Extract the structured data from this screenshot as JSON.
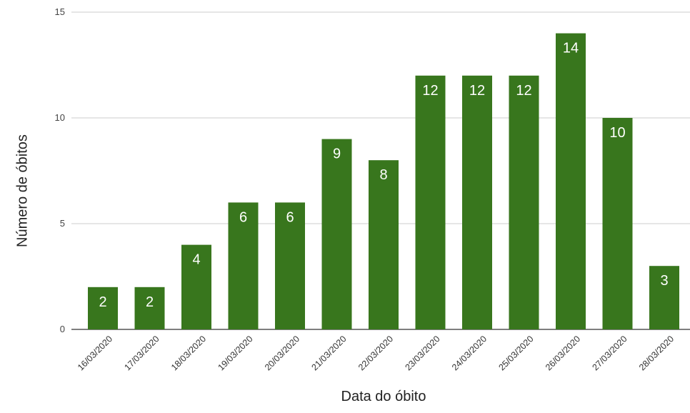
{
  "chart_data": {
    "type": "bar",
    "title": "",
    "xlabel": "Data do óbito",
    "ylabel": "Número de óbitos",
    "ylim": [
      0,
      15
    ],
    "yticks": [
      0,
      5,
      10,
      15
    ],
    "grid": true,
    "legend": "none",
    "bar_color": "#38761d",
    "label_color": "#ffffff",
    "categories": [
      "16/03/2020",
      "17/03/2020",
      "18/03/2020",
      "19/03/2020",
      "20/03/2020",
      "21/03/2020",
      "22/03/2020",
      "23/03/2020",
      "24/03/2020",
      "25/03/2020",
      "26/03/2020",
      "27/03/2020",
      "28/03/2020"
    ],
    "values": [
      2,
      2,
      4,
      6,
      6,
      9,
      8,
      12,
      12,
      12,
      14,
      10,
      3
    ]
  }
}
